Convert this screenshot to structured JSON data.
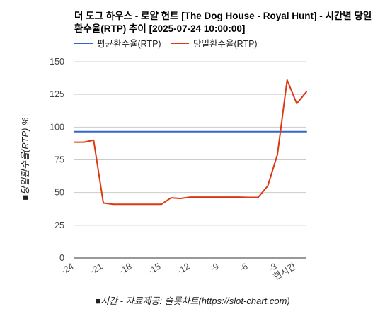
{
  "chart_data": {
    "type": "line",
    "title": "더 도그 하우스 - 로얄 헌트 [The Dog House - Royal Hunt] - 시간별 당일환수율(RTP) 추이 [2025-07-24 10:00:00]",
    "xlabel": "■시간 - 자료제공: 슬롯차트(https://slot-chart.com)",
    "ylabel": "■당일환수율(RTP) %",
    "ylim": [
      0,
      150
    ],
    "yticks": [
      "0",
      "25",
      "50",
      "75",
      "100",
      "125",
      "150"
    ],
    "xlim": [
      -24,
      0
    ],
    "xticks": [
      {
        "x": -24,
        "label": "-24"
      },
      {
        "x": -21,
        "label": "-21"
      },
      {
        "x": -18,
        "label": "-18"
      },
      {
        "x": -15,
        "label": "-15"
      },
      {
        "x": -12,
        "label": "-12"
      },
      {
        "x": -9,
        "label": "-9"
      },
      {
        "x": -6,
        "label": "-6"
      },
      {
        "x": -3,
        "label": "-3"
      },
      {
        "x": -1,
        "label": "현시간"
      }
    ],
    "legend_position": "top-left",
    "grid": true,
    "series": [
      {
        "name": "평균환수율(RTP)",
        "color": "#3366cc",
        "points": [
          [
            -24,
            96.5
          ],
          [
            0,
            96.5
          ]
        ]
      },
      {
        "name": "당일환수율(RTP)",
        "color": "#dc3912",
        "points": [
          [
            -24,
            88.5
          ],
          [
            -23,
            88.5
          ],
          [
            -22,
            90
          ],
          [
            -21,
            42
          ],
          [
            -20,
            41
          ],
          [
            -19,
            41
          ],
          [
            -18,
            41
          ],
          [
            -17,
            41
          ],
          [
            -16,
            41
          ],
          [
            -15,
            41
          ],
          [
            -14,
            46
          ],
          [
            -13,
            45.5
          ],
          [
            -12,
            46.5
          ],
          [
            -11,
            46.5
          ],
          [
            -10,
            46.5
          ],
          [
            -9,
            46.5
          ],
          [
            -8,
            46.5
          ],
          [
            -7,
            46.5
          ],
          [
            -6,
            46.3
          ],
          [
            -5,
            46.3
          ],
          [
            -4,
            55
          ],
          [
            -3,
            79
          ],
          [
            -2,
            136
          ],
          [
            -1,
            118
          ],
          [
            0,
            127
          ]
        ]
      }
    ]
  }
}
